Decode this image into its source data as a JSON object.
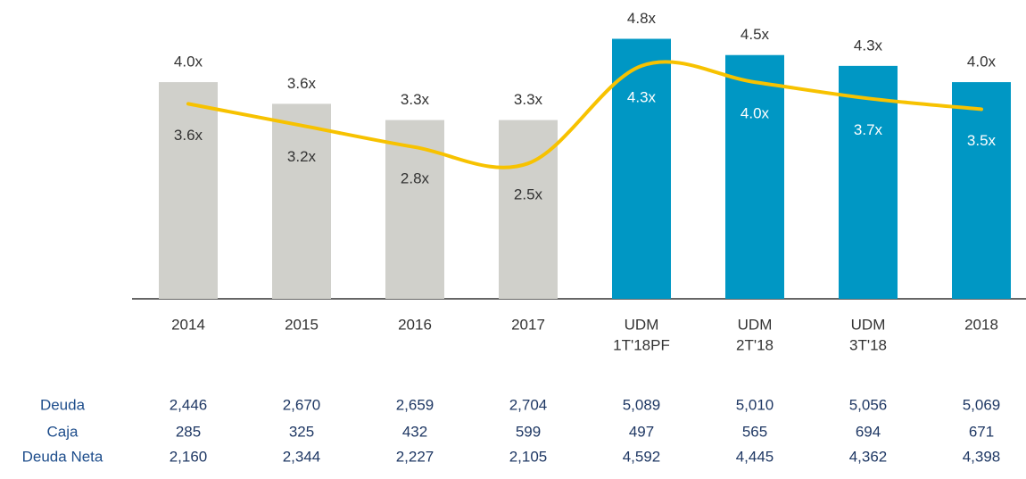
{
  "chart_data": {
    "type": "bar",
    "categories": [
      [
        "2014"
      ],
      [
        "2015"
      ],
      [
        "2016"
      ],
      [
        "2017"
      ],
      [
        "UDM",
        "1T'18PF"
      ],
      [
        "UDM",
        "2T'18"
      ],
      [
        "UDM",
        "3T'18"
      ],
      [
        "2018"
      ]
    ],
    "series": [
      {
        "type": "bar",
        "values": [
          4.0,
          3.6,
          3.3,
          3.3,
          4.8,
          4.5,
          4.3,
          4.0
        ],
        "value_labels": [
          "4.0x",
          "3.6x",
          "3.3x",
          "3.3x",
          "4.8x",
          "4.5x",
          "4.3x",
          "4.0x"
        ],
        "colors": [
          "#d0d0cb",
          "#d0d0cb",
          "#d0d0cb",
          "#d0d0cb",
          "#0097c4",
          "#0097c4",
          "#0097c4",
          "#0097c4"
        ]
      },
      {
        "type": "line",
        "values": [
          3.6,
          3.2,
          2.8,
          2.5,
          4.3,
          4.0,
          3.7,
          3.5
        ],
        "value_labels": [
          "3.6x",
          "3.2x",
          "2.8x",
          "2.5x",
          "4.3x",
          "4.0x",
          "3.7x",
          "3.5x"
        ],
        "color": "#f7c200"
      }
    ],
    "ylim": [
      0,
      5.5
    ]
  },
  "table": {
    "rows": [
      {
        "label": "Deuda",
        "values": [
          "2,446",
          "2,670",
          "2,659",
          "2,704",
          "5,089",
          "5,010",
          "5,056",
          "5,069"
        ]
      },
      {
        "label": "Caja",
        "values": [
          "285",
          "325",
          "432",
          "599",
          "497",
          "565",
          "694",
          "671"
        ]
      },
      {
        "label": "Deuda Neta",
        "values": [
          "2,160",
          "2,344",
          "2,227",
          "2,105",
          "4,592",
          "4,445",
          "4,362",
          "4,398"
        ]
      }
    ]
  }
}
